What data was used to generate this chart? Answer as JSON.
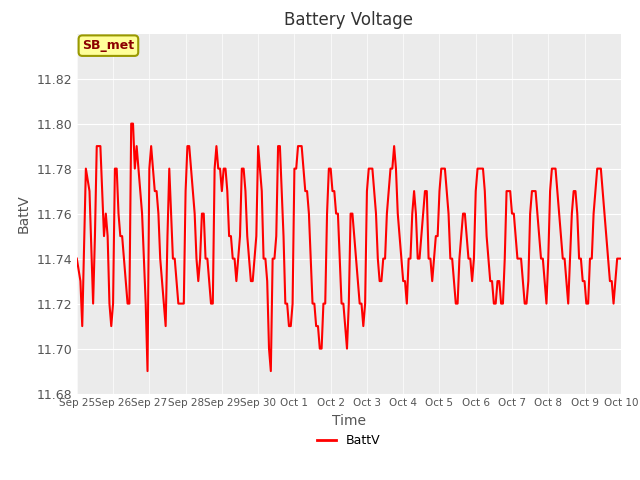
{
  "title": "Battery Voltage",
  "xlabel": "Time",
  "ylabel": "BattV",
  "ylim": [
    11.68,
    11.84
  ],
  "yticks": [
    11.68,
    11.7,
    11.72,
    11.74,
    11.76,
    11.78,
    11.8,
    11.82
  ],
  "line_color": "red",
  "line_width": 1.5,
  "fig_bg_color": "#ffffff",
  "plot_bg_color": "#ebebeb",
  "legend_label": "BattV",
  "legend_box_facecolor": "#ffff99",
  "legend_box_edgecolor": "#999900",
  "annotation_text": "SB_met",
  "x_tick_labels": [
    "Sep 25",
    "Sep 26",
    "Sep 27",
    "Sep 28",
    "Sep 29",
    "Sep 30",
    "Oct 1",
    "Oct 2",
    "Oct 3",
    "Oct 4",
    "Oct 5",
    "Oct 6",
    "Oct 7",
    "Oct 8",
    "Oct 9",
    "Oct 10"
  ],
  "x_tick_positions": [
    0,
    1,
    2,
    3,
    4,
    5,
    6,
    7,
    8,
    9,
    10,
    11,
    12,
    13,
    14,
    15
  ],
  "data_x": [
    0.0,
    0.1,
    0.15,
    0.25,
    0.35,
    0.45,
    0.5,
    0.55,
    0.65,
    0.7,
    0.75,
    0.8,
    0.85,
    0.9,
    0.95,
    1.0,
    1.05,
    1.1,
    1.15,
    1.2,
    1.25,
    1.3,
    1.35,
    1.4,
    1.45,
    1.5,
    1.55,
    1.6,
    1.65,
    1.7,
    1.75,
    1.8,
    1.85,
    1.9,
    1.95,
    2.0,
    2.05,
    2.1,
    2.15,
    2.2,
    2.25,
    2.3,
    2.35,
    2.4,
    2.45,
    2.5,
    2.55,
    2.6,
    2.65,
    2.7,
    2.75,
    2.8,
    2.85,
    2.9,
    2.95,
    3.0,
    3.05,
    3.1,
    3.15,
    3.2,
    3.25,
    3.3,
    3.35,
    3.4,
    3.45,
    3.5,
    3.55,
    3.6,
    3.65,
    3.7,
    3.75,
    3.8,
    3.85,
    3.9,
    3.95,
    4.0,
    4.05,
    4.1,
    4.15,
    4.2,
    4.25,
    4.3,
    4.35,
    4.4,
    4.45,
    4.5,
    4.55,
    4.6,
    4.65,
    4.7,
    4.75,
    4.8,
    4.85,
    4.9,
    4.95,
    5.0,
    5.05,
    5.1,
    5.15,
    5.2,
    5.25,
    5.3,
    5.35,
    5.4,
    5.45,
    5.5,
    5.55,
    5.6,
    5.65,
    5.7,
    5.75,
    5.8,
    5.85,
    5.9,
    5.95,
    6.0,
    6.05,
    6.1,
    6.15,
    6.2,
    6.25,
    6.3,
    6.35,
    6.4,
    6.45,
    6.5,
    6.55,
    6.6,
    6.65,
    6.7,
    6.75,
    6.8,
    6.85,
    6.9,
    6.95,
    7.0,
    7.05,
    7.1,
    7.15,
    7.2,
    7.25,
    7.3,
    7.35,
    7.4,
    7.45,
    7.5,
    7.55,
    7.6,
    7.65,
    7.7,
    7.75,
    7.8,
    7.85,
    7.9,
    7.95,
    8.0,
    8.05,
    8.1,
    8.15,
    8.2,
    8.25,
    8.3,
    8.35,
    8.4,
    8.45,
    8.5,
    8.55,
    8.6,
    8.65,
    8.7,
    8.75,
    8.8,
    8.85,
    8.9,
    8.95,
    9.0,
    9.05,
    9.1,
    9.15,
    9.2,
    9.25,
    9.3,
    9.35,
    9.4,
    9.45,
    9.5,
    9.55,
    9.6,
    9.65,
    9.7,
    9.75,
    9.8,
    9.85,
    9.9,
    9.95,
    10.0,
    10.05,
    10.1,
    10.15,
    10.2,
    10.25,
    10.3,
    10.35,
    10.4,
    10.45,
    10.5,
    10.55,
    10.6,
    10.65,
    10.7,
    10.75,
    10.8,
    10.85,
    10.9,
    10.95,
    11.0,
    11.05,
    11.1,
    11.15,
    11.2,
    11.25,
    11.3,
    11.35,
    11.4,
    11.45,
    11.5,
    11.55,
    11.6,
    11.65,
    11.7,
    11.75,
    11.8,
    11.85,
    11.9,
    11.95,
    12.0,
    12.05,
    12.1,
    12.15,
    12.2,
    12.25,
    12.3,
    12.35,
    12.4,
    12.45,
    12.5,
    12.55,
    12.6,
    12.65,
    12.7,
    12.75,
    12.8,
    12.85,
    12.9,
    12.95,
    13.0,
    13.05,
    13.1,
    13.15,
    13.2,
    13.25,
    13.3,
    13.35,
    13.4,
    13.45,
    13.5,
    13.55,
    13.6,
    13.65,
    13.7,
    13.75,
    13.8,
    13.85,
    13.9,
    13.95,
    14.0,
    14.05,
    14.1,
    14.15,
    14.2,
    14.25,
    14.3,
    14.35,
    14.4,
    14.45,
    14.5,
    14.55,
    14.6,
    14.65,
    14.7,
    14.75,
    14.8,
    14.85,
    14.9,
    14.95,
    15.0
  ],
  "data_y": [
    11.74,
    11.73,
    11.71,
    11.78,
    11.77,
    11.72,
    11.75,
    11.79,
    11.79,
    11.77,
    11.75,
    11.76,
    11.75,
    11.72,
    11.71,
    11.72,
    11.78,
    11.78,
    11.76,
    11.75,
    11.75,
    11.74,
    11.73,
    11.72,
    11.72,
    11.8,
    11.8,
    11.78,
    11.79,
    11.78,
    11.77,
    11.76,
    11.74,
    11.72,
    11.69,
    11.78,
    11.79,
    11.78,
    11.77,
    11.77,
    11.76,
    11.74,
    11.73,
    11.72,
    11.71,
    11.75,
    11.78,
    11.76,
    11.74,
    11.74,
    11.73,
    11.72,
    11.72,
    11.72,
    11.72,
    11.77,
    11.79,
    11.79,
    11.78,
    11.77,
    11.76,
    11.74,
    11.73,
    11.74,
    11.76,
    11.76,
    11.74,
    11.74,
    11.73,
    11.72,
    11.72,
    11.78,
    11.79,
    11.78,
    11.78,
    11.77,
    11.78,
    11.78,
    11.77,
    11.75,
    11.75,
    11.74,
    11.74,
    11.73,
    11.74,
    11.75,
    11.78,
    11.78,
    11.77,
    11.75,
    11.74,
    11.73,
    11.73,
    11.74,
    11.75,
    11.79,
    11.78,
    11.77,
    11.74,
    11.74,
    11.73,
    11.7,
    11.69,
    11.74,
    11.74,
    11.75,
    11.79,
    11.79,
    11.77,
    11.75,
    11.72,
    11.72,
    11.71,
    11.71,
    11.72,
    11.78,
    11.78,
    11.79,
    11.79,
    11.79,
    11.78,
    11.77,
    11.77,
    11.76,
    11.74,
    11.72,
    11.72,
    11.71,
    11.71,
    11.7,
    11.7,
    11.72,
    11.72,
    11.76,
    11.78,
    11.78,
    11.77,
    11.77,
    11.76,
    11.76,
    11.74,
    11.72,
    11.72,
    11.71,
    11.7,
    11.72,
    11.76,
    11.76,
    11.75,
    11.74,
    11.73,
    11.72,
    11.72,
    11.71,
    11.72,
    11.77,
    11.78,
    11.78,
    11.78,
    11.77,
    11.76,
    11.74,
    11.73,
    11.73,
    11.74,
    11.74,
    11.76,
    11.77,
    11.78,
    11.78,
    11.79,
    11.78,
    11.76,
    11.75,
    11.74,
    11.73,
    11.73,
    11.72,
    11.74,
    11.74,
    11.76,
    11.77,
    11.76,
    11.74,
    11.74,
    11.75,
    11.76,
    11.77,
    11.77,
    11.74,
    11.74,
    11.73,
    11.74,
    11.75,
    11.75,
    11.77,
    11.78,
    11.78,
    11.78,
    11.77,
    11.76,
    11.74,
    11.74,
    11.73,
    11.72,
    11.72,
    11.74,
    11.75,
    11.76,
    11.76,
    11.75,
    11.74,
    11.74,
    11.73,
    11.74,
    11.77,
    11.78,
    11.78,
    11.78,
    11.78,
    11.77,
    11.75,
    11.74,
    11.73,
    11.73,
    11.72,
    11.72,
    11.73,
    11.73,
    11.72,
    11.72,
    11.74,
    11.77,
    11.77,
    11.77,
    11.76,
    11.76,
    11.75,
    11.74,
    11.74,
    11.74,
    11.73,
    11.72,
    11.72,
    11.73,
    11.76,
    11.77,
    11.77,
    11.77,
    11.76,
    11.75,
    11.74,
    11.74,
    11.73,
    11.72,
    11.74,
    11.77,
    11.78,
    11.78,
    11.78,
    11.77,
    11.76,
    11.75,
    11.74,
    11.74,
    11.73,
    11.72,
    11.74,
    11.76,
    11.77,
    11.77,
    11.76,
    11.74,
    11.74,
    11.73,
    11.73,
    11.72,
    11.72,
    11.74,
    11.74,
    11.76,
    11.77,
    11.78,
    11.78,
    11.78,
    11.77,
    11.76,
    11.75,
    11.74,
    11.73,
    11.73,
    11.72,
    11.73,
    11.74,
    11.74,
    11.74
  ]
}
